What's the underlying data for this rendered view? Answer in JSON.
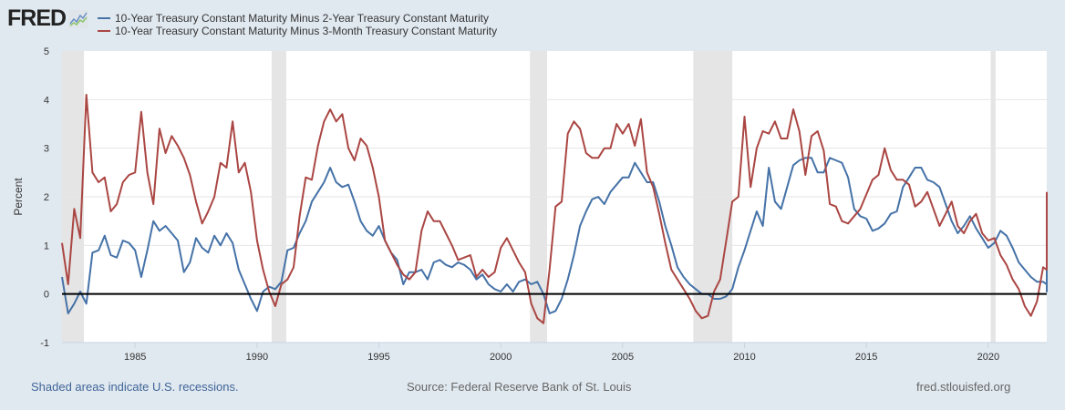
{
  "header": {
    "logo_text": "FRED",
    "logo_icon": "line-chart-icon"
  },
  "chart_data": {
    "type": "line",
    "title": "",
    "xlabel": "",
    "ylabel": "Percent",
    "ylim": [
      -1,
      5
    ],
    "xlim": [
      1982.0,
      2022.4
    ],
    "yticks": [
      "-1",
      "0",
      "1",
      "2",
      "3",
      "4",
      "5"
    ],
    "xticks": [
      "1985",
      "1990",
      "1995",
      "2000",
      "2005",
      "2010",
      "2015",
      "2020"
    ],
    "grid": true,
    "legend_position": "top-left",
    "zero_line": true,
    "recessions": [
      [
        1982.0,
        1982.9
      ],
      [
        1990.6,
        1991.2
      ],
      [
        2001.2,
        2001.9
      ],
      [
        2007.9,
        2009.5
      ],
      [
        2020.1,
        2020.3
      ]
    ],
    "series": [
      {
        "name": "10-Year Treasury Constant Maturity Minus 2-Year Treasury Constant Maturity",
        "color": "#4572a7",
        "x_start": 1982.0,
        "x_step": 0.25,
        "values": [
          0.35,
          -0.4,
          -0.2,
          0.05,
          -0.2,
          0.85,
          0.9,
          1.2,
          0.8,
          0.75,
          1.1,
          1.05,
          0.9,
          0.35,
          0.9,
          1.5,
          1.3,
          1.4,
          1.25,
          1.1,
          0.45,
          0.65,
          1.15,
          0.95,
          0.85,
          1.2,
          1.0,
          1.25,
          1.05,
          0.5,
          0.2,
          -0.1,
          -0.35,
          0.05,
          0.15,
          0.1,
          0.25,
          0.9,
          0.95,
          1.25,
          1.5,
          1.9,
          2.1,
          2.3,
          2.6,
          2.3,
          2.2,
          2.25,
          1.9,
          1.5,
          1.3,
          1.2,
          1.4,
          1.1,
          0.85,
          0.7,
          0.2,
          0.45,
          0.45,
          0.5,
          0.3,
          0.65,
          0.7,
          0.6,
          0.55,
          0.65,
          0.6,
          0.5,
          0.3,
          0.4,
          0.2,
          0.1,
          0.05,
          0.2,
          0.05,
          0.25,
          0.3,
          0.2,
          0.25,
          0.0,
          -0.4,
          -0.35,
          -0.1,
          0.3,
          0.8,
          1.4,
          1.7,
          1.95,
          2.0,
          1.85,
          2.1,
          2.25,
          2.4,
          2.4,
          2.7,
          2.5,
          2.3,
          2.3,
          1.9,
          1.4,
          1.0,
          0.55,
          0.35,
          0.2,
          0.1,
          0.0,
          0.0,
          -0.1,
          -0.1,
          -0.05,
          0.1,
          0.55,
          0.9,
          1.3,
          1.7,
          1.4,
          2.6,
          1.9,
          1.75,
          2.2,
          2.65,
          2.75,
          2.8,
          2.8,
          2.5,
          2.5,
          2.8,
          2.75,
          2.7,
          2.4,
          1.75,
          1.6,
          1.55,
          1.3,
          1.35,
          1.45,
          1.65,
          1.7,
          2.2,
          2.4,
          2.6,
          2.6,
          2.35,
          2.3,
          2.2,
          1.85,
          1.5,
          1.25,
          1.4,
          1.6,
          1.35,
          1.15,
          0.95,
          1.05,
          1.3,
          1.2,
          0.95,
          0.65,
          0.5,
          0.35,
          0.25,
          0.25,
          0.2,
          0.1,
          0.05,
          0.2,
          0.5,
          0.55,
          0.65,
          1.0,
          1.55,
          1.25,
          1.15,
          0.9,
          0.6,
          0.05,
          0.45
        ]
      },
      {
        "name": "10-Year Treasury Constant Maturity Minus 3-Month Treasury Constant Maturity",
        "color": "#aa4643",
        "x_start": 1982.0,
        "x_step": 0.25,
        "values": [
          1.05,
          0.2,
          1.75,
          1.15,
          4.1,
          2.5,
          2.3,
          2.4,
          1.7,
          1.85,
          2.3,
          2.45,
          2.5,
          3.75,
          2.5,
          1.85,
          3.4,
          2.9,
          3.25,
          3.05,
          2.8,
          2.45,
          1.9,
          1.45,
          1.7,
          2.0,
          2.7,
          2.6,
          3.55,
          2.5,
          2.7,
          2.1,
          1.1,
          0.5,
          0.05,
          -0.25,
          0.2,
          0.3,
          0.55,
          1.6,
          2.4,
          2.35,
          3.05,
          3.55,
          3.8,
          3.55,
          3.7,
          3.0,
          2.75,
          3.2,
          3.05,
          2.6,
          2.0,
          1.1,
          0.85,
          0.6,
          0.4,
          0.3,
          0.45,
          1.3,
          1.7,
          1.5,
          1.5,
          1.25,
          1.0,
          0.7,
          0.75,
          0.8,
          0.35,
          0.5,
          0.35,
          0.45,
          0.95,
          1.15,
          0.9,
          0.65,
          0.45,
          -0.2,
          -0.5,
          -0.6,
          0.5,
          1.8,
          1.9,
          3.3,
          3.55,
          3.4,
          2.9,
          2.8,
          2.8,
          3.0,
          3.0,
          3.5,
          3.3,
          3.5,
          3.05,
          3.6,
          2.5,
          2.2,
          1.65,
          1.05,
          0.5,
          0.3,
          0.1,
          -0.1,
          -0.35,
          -0.5,
          -0.45,
          0.05,
          0.3,
          1.1,
          1.9,
          2.0,
          3.65,
          2.2,
          3.0,
          3.35,
          3.3,
          3.55,
          3.2,
          3.2,
          3.8,
          3.35,
          2.45,
          3.25,
          3.35,
          2.95,
          1.85,
          1.8,
          1.5,
          1.45,
          1.6,
          1.75,
          2.05,
          2.35,
          2.45,
          3.0,
          2.55,
          2.35,
          2.35,
          2.25,
          1.8,
          1.9,
          2.1,
          1.75,
          1.4,
          1.65,
          1.9,
          1.4,
          1.25,
          1.5,
          1.65,
          1.25,
          1.1,
          1.15,
          0.8,
          0.6,
          0.3,
          0.1,
          -0.25,
          -0.45,
          -0.15,
          0.55,
          0.5,
          0.55,
          0.6,
          1.1,
          1.7,
          1.55,
          1.45,
          1.5,
          1.6,
          1.7,
          2.1
        ]
      }
    ]
  },
  "footer": {
    "recession_note": "Shaded areas indicate U.S. recessions.",
    "source": "Source: Federal Reserve Bank of St. Louis",
    "site": "fred.stlouisfed.org"
  }
}
